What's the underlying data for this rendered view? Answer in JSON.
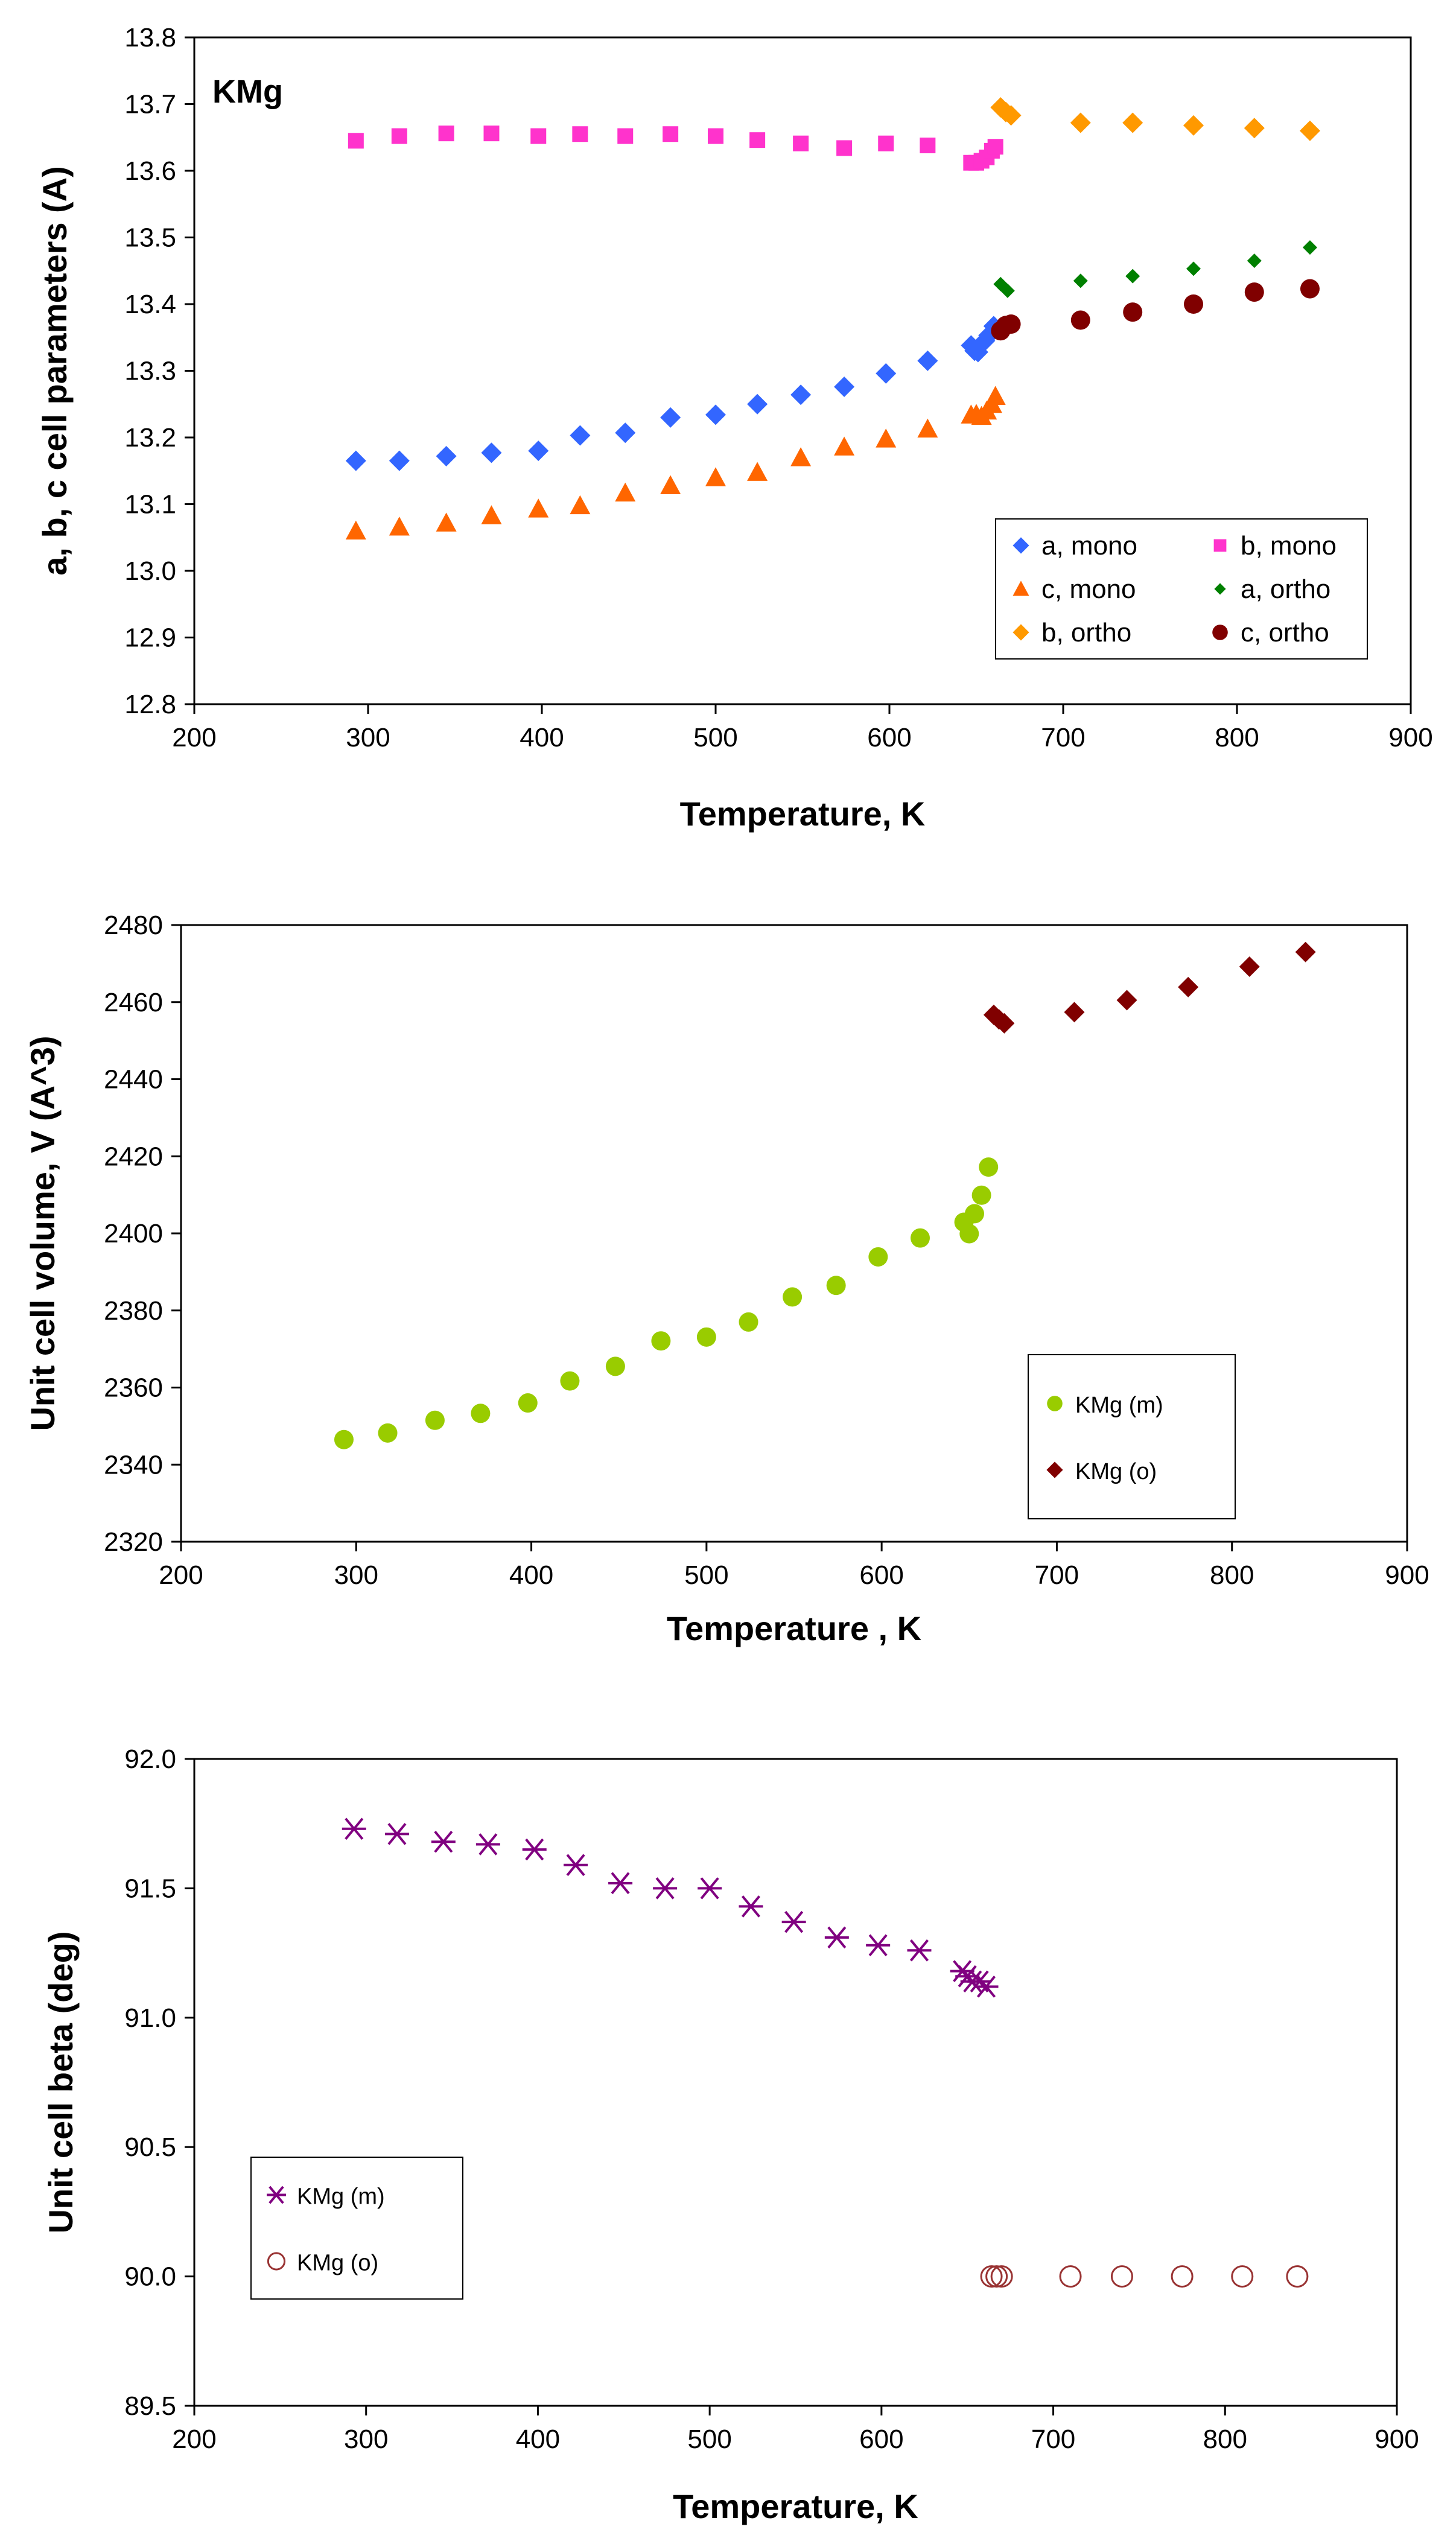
{
  "chart_data": [
    {
      "type": "scatter",
      "annotation": "KMg",
      "xlabel": "Temperature, K",
      "ylabel": "a, b, c cell parameters (A)",
      "xlim": [
        200,
        900
      ],
      "ylim": [
        12.8,
        13.8
      ],
      "xticks": [
        200,
        300,
        400,
        500,
        600,
        700,
        800,
        900
      ],
      "yticks": [
        "12.8",
        "12.9",
        "13.0",
        "13.1",
        "13.2",
        "13.3",
        "13.4",
        "13.5",
        "13.6",
        "13.7",
        "13.8"
      ],
      "legend_position": "bottom-right",
      "series": [
        {
          "name": "a, mono",
          "marker": "diamond",
          "color": "#3366ff",
          "x": [
            293,
            318,
            345,
            371,
            398,
            422,
            448,
            474,
            500,
            524,
            549,
            574,
            598,
            622,
            647,
            649,
            651,
            653,
            655,
            657,
            660
          ],
          "y": [
            13.165,
            13.165,
            13.172,
            13.177,
            13.18,
            13.203,
            13.207,
            13.23,
            13.234,
            13.25,
            13.264,
            13.276,
            13.296,
            13.315,
            13.338,
            13.33,
            13.328,
            13.34,
            13.345,
            13.353,
            13.367
          ]
        },
        {
          "name": "b, mono",
          "marker": "square",
          "color": "#ff33cc",
          "x": [
            293,
            318,
            345,
            371,
            398,
            422,
            448,
            474,
            500,
            524,
            549,
            574,
            598,
            622,
            647,
            650,
            653,
            656,
            659,
            661
          ],
          "y": [
            13.645,
            13.652,
            13.656,
            13.656,
            13.652,
            13.655,
            13.652,
            13.655,
            13.652,
            13.646,
            13.641,
            13.634,
            13.641,
            13.638,
            13.612,
            13.612,
            13.615,
            13.62,
            13.63,
            13.636
          ]
        },
        {
          "name": "c, mono",
          "marker": "triangle",
          "color": "#ff6600",
          "x": [
            293,
            318,
            345,
            371,
            398,
            422,
            448,
            474,
            500,
            524,
            549,
            574,
            598,
            622,
            647,
            650,
            653,
            656,
            659,
            661
          ],
          "y": [
            13.06,
            13.066,
            13.072,
            13.083,
            13.093,
            13.098,
            13.117,
            13.128,
            13.14,
            13.148,
            13.17,
            13.186,
            13.198,
            13.213,
            13.234,
            13.235,
            13.232,
            13.24,
            13.25,
            13.262
          ]
        },
        {
          "name": "a, ortho",
          "marker": "small-diamond",
          "color": "#008000",
          "x": [
            664,
            668,
            710,
            740,
            775,
            810,
            842
          ],
          "y": [
            13.43,
            13.42,
            13.435,
            13.442,
            13.453,
            13.465,
            13.485
          ]
        },
        {
          "name": "b, ortho",
          "marker": "diamond",
          "color": "#ff9900",
          "x": [
            664,
            667,
            670,
            710,
            740,
            775,
            810,
            842
          ],
          "y": [
            13.695,
            13.688,
            13.683,
            13.672,
            13.672,
            13.668,
            13.664,
            13.66
          ]
        },
        {
          "name": "c, ortho",
          "marker": "circle",
          "color": "#800000",
          "x": [
            664,
            667,
            670,
            710,
            740,
            775,
            810,
            842
          ],
          "y": [
            13.36,
            13.368,
            13.37,
            13.376,
            13.388,
            13.4,
            13.418,
            13.423
          ]
        }
      ]
    },
    {
      "type": "scatter",
      "xlabel": "Temperature , K",
      "ylabel": "Unit cell volume, V (A^3)",
      "xlim": [
        200,
        900
      ],
      "ylim": [
        2320,
        2480
      ],
      "xticks": [
        200,
        300,
        400,
        500,
        600,
        700,
        800,
        900
      ],
      "yticks": [
        "2320",
        "2340",
        "2360",
        "2380",
        "2400",
        "2420",
        "2440",
        "2460",
        "2480"
      ],
      "legend_position": "right",
      "series": [
        {
          "name": "KMg (m)",
          "marker": "circle",
          "color": "#99cc00",
          "x": [
            293,
            318,
            345,
            371,
            398,
            422,
            448,
            474,
            500,
            524,
            549,
            574,
            598,
            622,
            647,
            650,
            653,
            657,
            661
          ],
          "y": [
            2346.5,
            2348.2,
            2351.5,
            2353.3,
            2356.0,
            2361.7,
            2365.5,
            2372.1,
            2373.1,
            2377.0,
            2383.5,
            2386.5,
            2393.9,
            2398.8,
            2402.9,
            2399.9,
            2405.1,
            2409.9,
            2417.2
          ]
        },
        {
          "name": "KMg (o)",
          "marker": "diamond",
          "color": "#800000",
          "x": [
            664,
            667,
            670,
            710,
            740,
            775,
            810,
            842
          ],
          "y": [
            2456.7,
            2455.5,
            2454.5,
            2457.4,
            2460.5,
            2463.9,
            2469.2,
            2473.0
          ]
        }
      ]
    },
    {
      "type": "scatter",
      "xlabel": "Temperature, K",
      "ylabel": "Unit cell beta (deg)",
      "xlim": [
        200,
        900
      ],
      "ylim": [
        89.5,
        92.0
      ],
      "xticks": [
        200,
        300,
        400,
        500,
        600,
        700,
        800,
        900
      ],
      "yticks": [
        "89.5",
        "90.0",
        "90.5",
        "91.0",
        "91.5",
        "92.0"
      ],
      "legend_position": "left",
      "series": [
        {
          "name": "KMg (m)",
          "marker": "star",
          "color": "#800080",
          "x": [
            293,
            318,
            345,
            371,
            398,
            422,
            448,
            474,
            500,
            524,
            549,
            574,
            598,
            622,
            647,
            650,
            653,
            657,
            661
          ],
          "y": [
            91.73,
            91.71,
            91.68,
            91.67,
            91.65,
            91.59,
            91.52,
            91.5,
            91.5,
            91.43,
            91.37,
            91.31,
            91.28,
            91.26,
            91.18,
            91.16,
            91.14,
            91.14,
            91.12
          ]
        },
        {
          "name": "KMg (o)",
          "marker": "open-circle",
          "color": "#993333",
          "x": [
            664,
            667,
            670,
            710,
            740,
            775,
            810,
            842
          ],
          "y": [
            90.0,
            90.0,
            90.0,
            90.0,
            90.0,
            90.0,
            90.0,
            90.0
          ]
        }
      ]
    }
  ]
}
